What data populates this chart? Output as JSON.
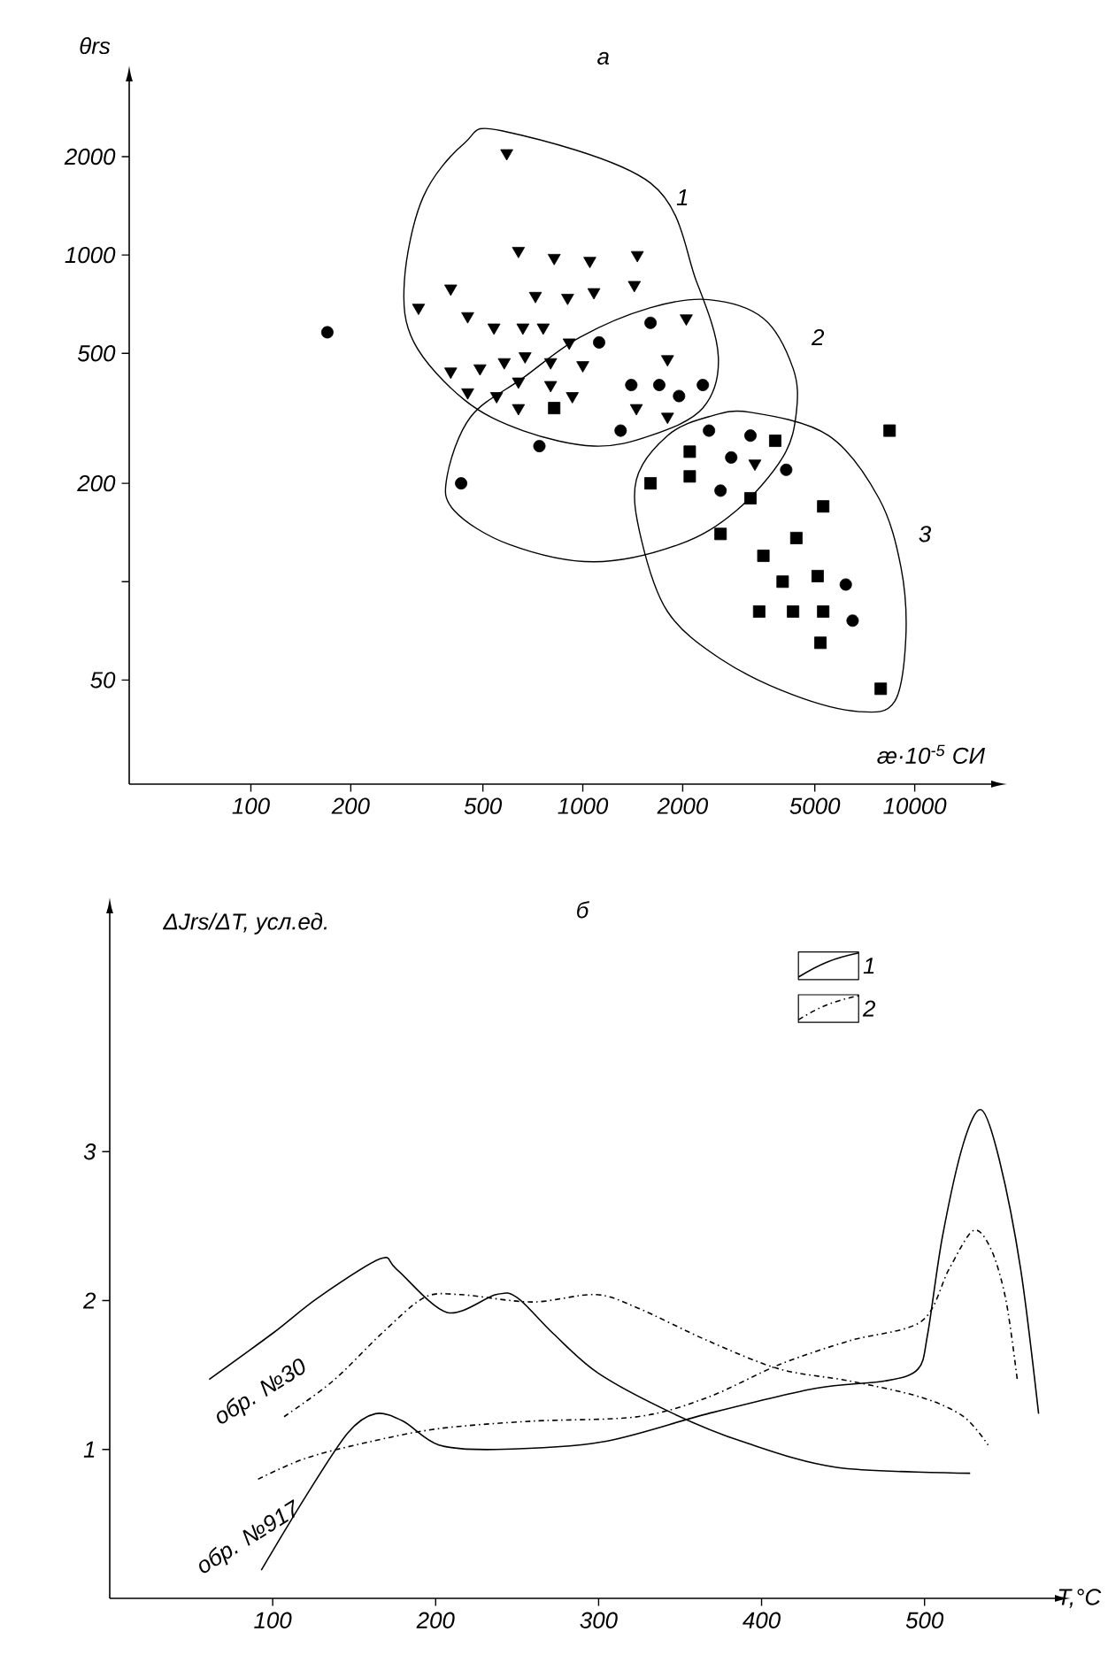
{
  "chart_data": [
    {
      "type": "scatter",
      "title": "а",
      "xlabel": "æ·10$^{-5}$ СИ",
      "ylabel": "θrs",
      "log": "xy",
      "xlim": [
        43,
        17000
      ],
      "ylim": [
        24,
        3400
      ],
      "xticks": [
        100,
        200,
        500,
        1000,
        2000,
        5000,
        10000
      ],
      "yticks": [
        50,
        {
          "value": 100,
          "label": null
        },
        200,
        500,
        1000,
        2000
      ],
      "series": [
        {
          "type": "scatter",
          "marker": "triangle",
          "color": "#000000",
          "x": [
            590,
            640,
            820,
            1050,
            1460,
            1430,
            1080,
            900,
            720,
            400,
            320,
            450,
            540,
            660,
            760,
            910,
            1000,
            800,
            670,
            580,
            490,
            400,
            450,
            550,
            640,
            800,
            930,
            640,
            1450,
            1800,
            1800,
            2050,
            3300
          ],
          "values": [
            2050,
            1030,
            980,
            960,
            1000,
            810,
            770,
            740,
            750,
            790,
            690,
            650,
            600,
            600,
            600,
            540,
            460,
            470,
            490,
            470,
            450,
            440,
            380,
            370,
            410,
            400,
            370,
            340,
            340,
            320,
            480,
            640,
            230
          ]
        },
        {
          "type": "scatter",
          "marker": "circle",
          "color": "#000000",
          "x": [
            170,
            430,
            740,
            1120,
            1600,
            1400,
            1700,
            1950,
            2300,
            1300,
            2400,
            3200,
            2800,
            2600,
            4100,
            6200,
            6500
          ],
          "values": [
            580,
            200,
            260,
            540,
            620,
            400,
            400,
            370,
            400,
            290,
            290,
            280,
            240,
            190,
            220,
            98,
            76
          ]
        },
        {
          "type": "scatter",
          "marker": "square",
          "color": "#000000",
          "x": [
            820,
            1600,
            2100,
            2100,
            3800,
            3200,
            2600,
            5300,
            4400,
            3500,
            4000,
            5100,
            3400,
            4300,
            5300,
            5200,
            7900,
            8400
          ],
          "values": [
            340,
            200,
            250,
            210,
            270,
            180,
            140,
            170,
            136,
            120,
            100,
            104,
            81,
            81,
            81,
            65,
            47,
            290
          ]
        }
      ],
      "annotations": [
        "1",
        "2",
        "3"
      ]
    },
    {
      "type": "line",
      "title": "б",
      "xlabel": "T,°C",
      "ylabel": "ΔJrs/ΔT, усл.ед.",
      "xlim": [
        0,
        580
      ],
      "ylim": [
        0,
        4.6
      ],
      "xticks": [
        100,
        200,
        300,
        400,
        500
      ],
      "yticks": [
        1,
        2,
        3
      ],
      "legend": "top right",
      "marker": "none",
      "series": [
        {
          "name": "1",
          "line_style": "solid",
          "color": "#000000",
          "x": [
            61,
            100,
            128,
            166,
            176,
            207,
            237,
            250,
            272,
            300,
            346,
            389,
            446,
            528
          ],
          "values": [
            1.47,
            1.78,
            2.02,
            2.28,
            2.21,
            1.92,
            2.04,
            2.02,
            1.78,
            1.51,
            1.24,
            1.05,
            0.88,
            0.84
          ]
        },
        {
          "name": "2",
          "line_style": "dashdot",
          "color": "#000000",
          "x": [
            107,
            137,
            167,
            193,
            215,
            259,
            298,
            324,
            367,
            411,
            454,
            498,
            524,
            539
          ],
          "values": [
            1.22,
            1.46,
            1.78,
            2.02,
            2.04,
            1.99,
            2.04,
            1.95,
            1.73,
            1.54,
            1.46,
            1.35,
            1.22,
            1.03
          ]
        },
        {
          "line_style": "solid",
          "color": "#000000",
          "x": [
            93,
            120,
            146,
            163,
            180,
            202,
            237,
            302,
            367,
            433,
            476,
            496,
            502,
            511,
            524,
            535,
            546,
            559,
            570
          ],
          "values": [
            0.19,
            0.68,
            1.11,
            1.24,
            1.19,
            1.03,
            1.0,
            1.05,
            1.24,
            1.41,
            1.46,
            1.54,
            1.78,
            2.43,
            3.06,
            3.28,
            2.94,
            2.21,
            1.24
          ]
        },
        {
          "line_style": "dashdot",
          "color": "#000000",
          "x": [
            91,
            120,
            159,
            202,
            259,
            324,
            367,
            411,
            454,
            498,
            515,
            530,
            541,
            550,
            557
          ],
          "values": [
            0.8,
            0.94,
            1.05,
            1.14,
            1.19,
            1.22,
            1.35,
            1.57,
            1.73,
            1.86,
            2.21,
            2.47,
            2.34,
            2.0,
            1.46
          ]
        }
      ],
      "annotations": [
        "обр. №30",
        "обр. №917"
      ]
    }
  ]
}
